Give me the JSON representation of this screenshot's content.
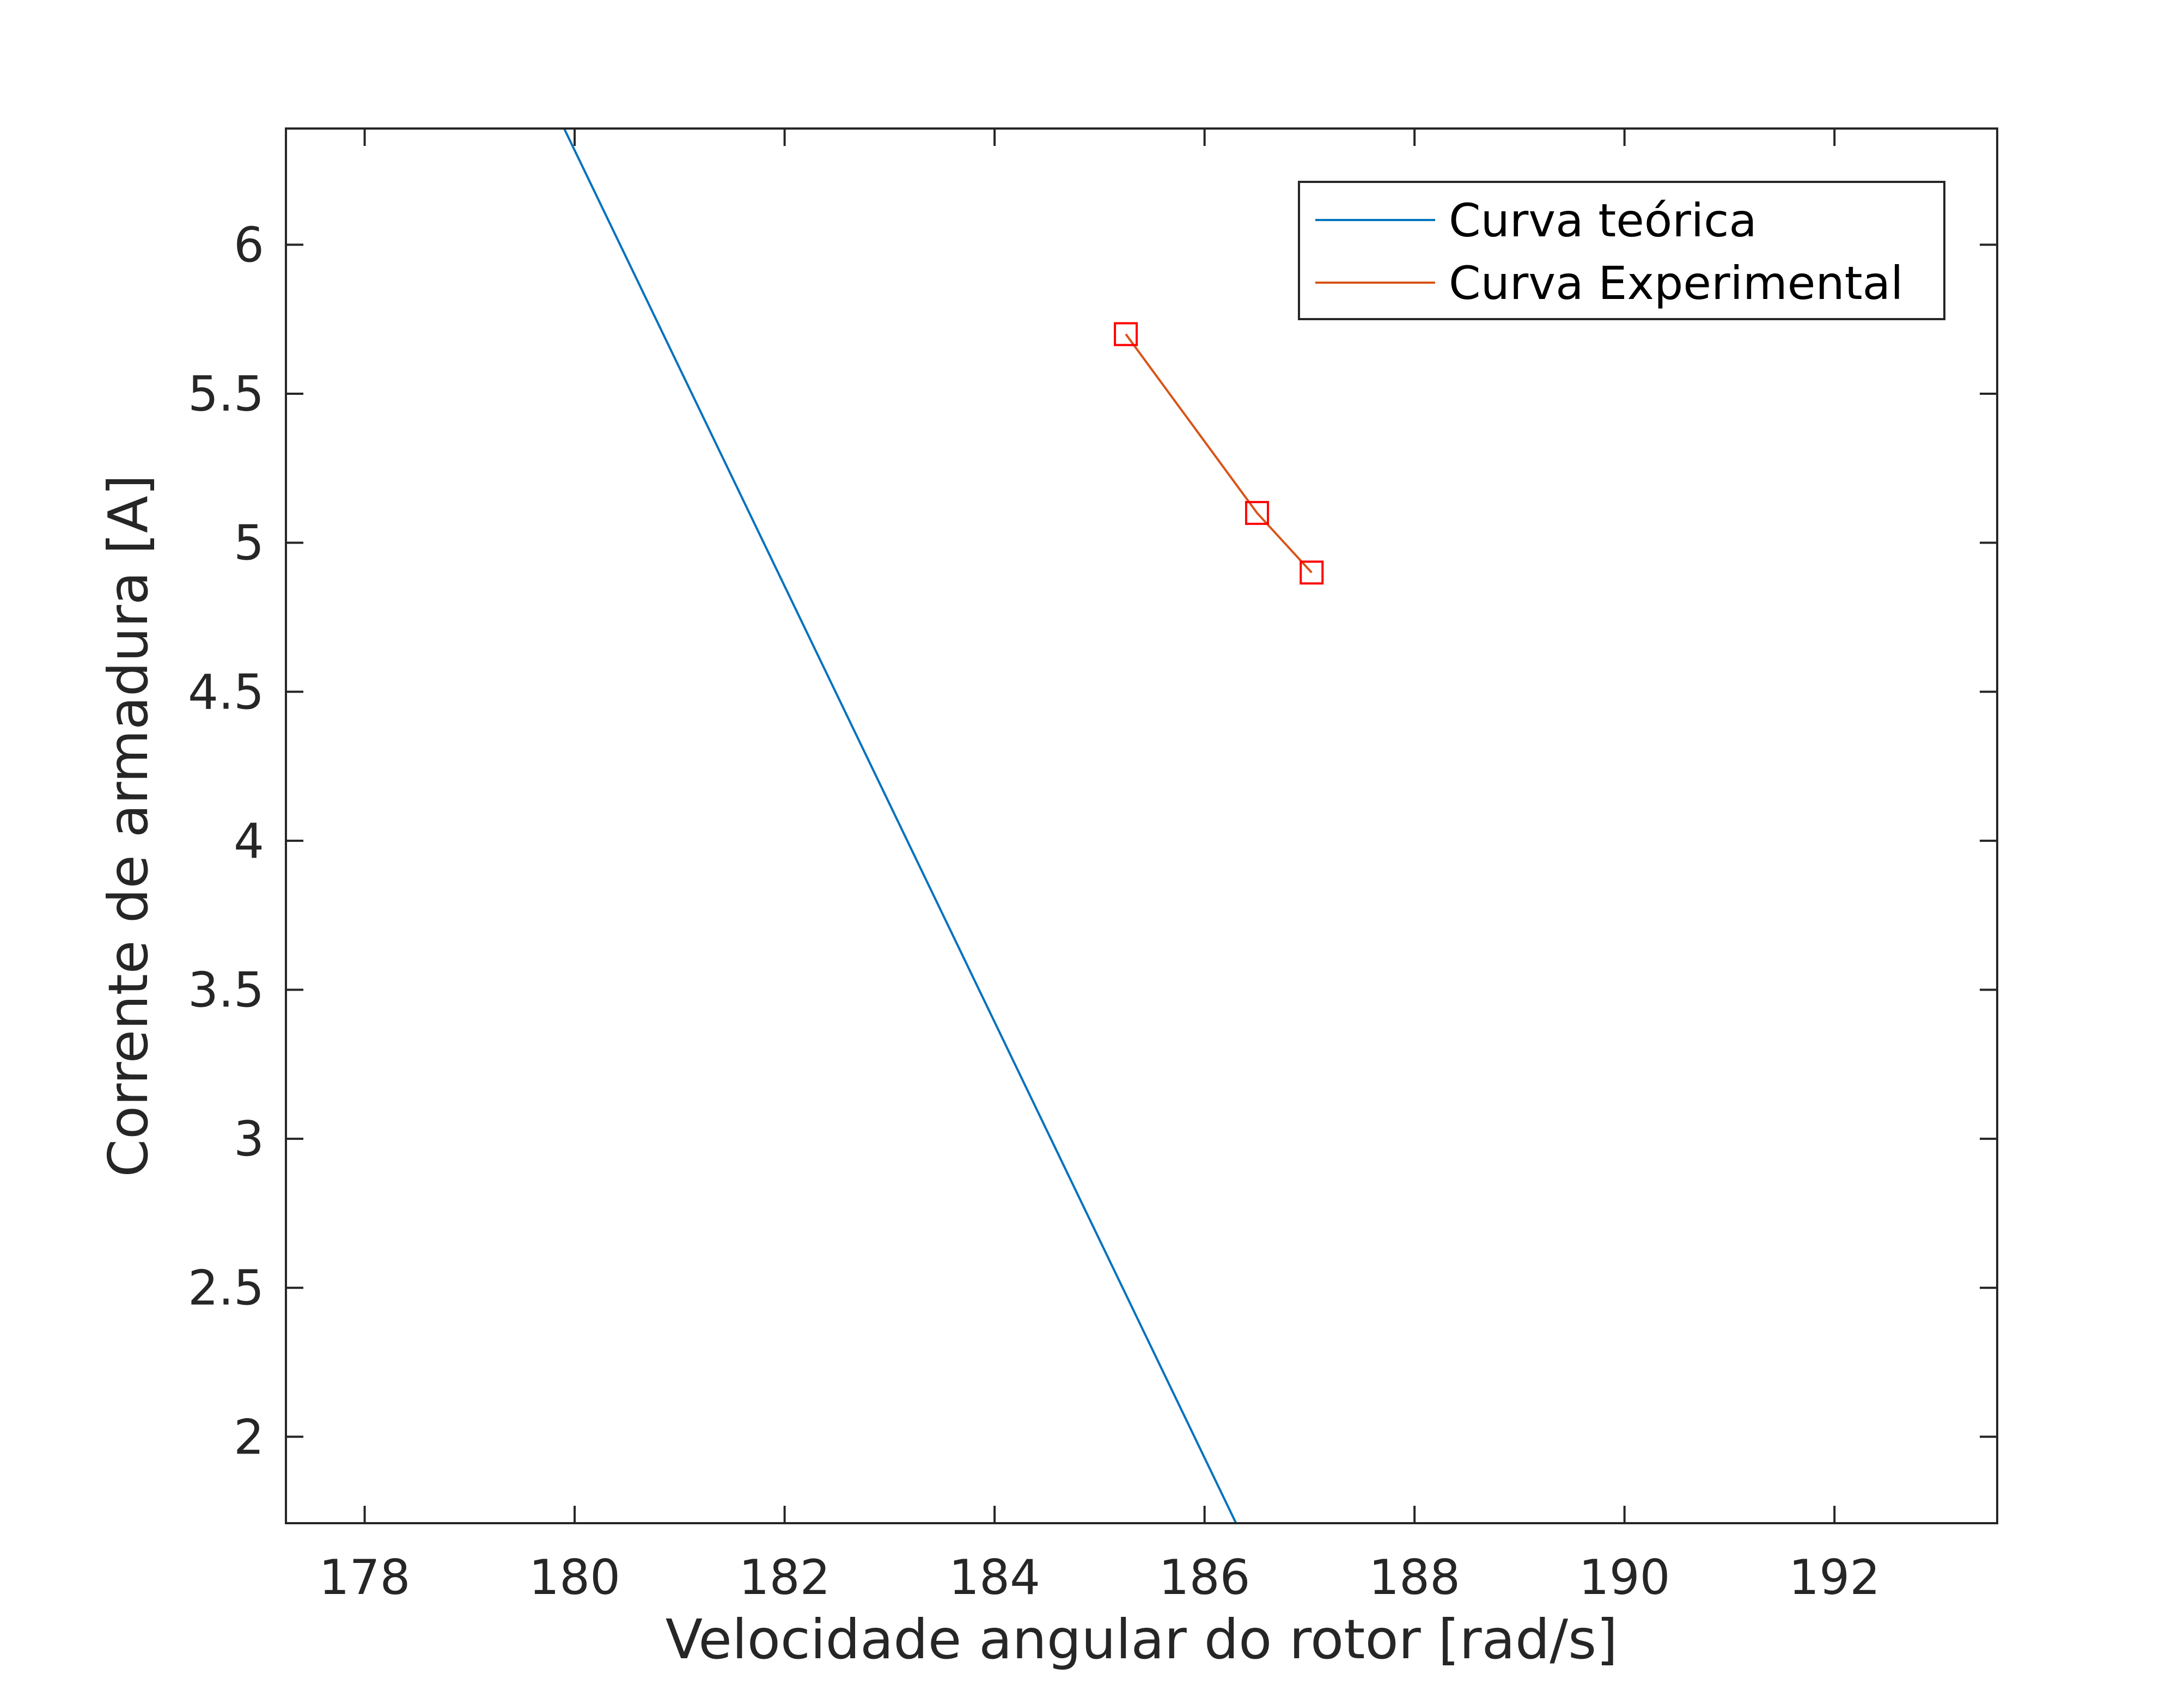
{
  "chart_data": {
    "type": "line",
    "title": "",
    "xlabel": "Velocidade angular do rotor [rad/s]",
    "ylabel": "Corrente de armadura [A]",
    "xlim": [
      177.25,
      193.55
    ],
    "ylim": [
      1.71,
      6.39
    ],
    "xticks": [
      178,
      180,
      182,
      184,
      186,
      188,
      190,
      192
    ],
    "yticks": [
      2,
      2.5,
      3,
      3.5,
      4,
      4.5,
      5,
      5.5,
      6
    ],
    "xtick_labels": [
      "178",
      "180",
      "182",
      "184",
      "186",
      "188",
      "190",
      "192"
    ],
    "ytick_labels": [
      "2",
      "2.5",
      "3",
      "3.5",
      "4",
      "4.5",
      "5",
      "5.5",
      "6"
    ],
    "grid": false,
    "legend_position": "top-right",
    "series": [
      {
        "name": "Curva teórica",
        "color": "#0072BD",
        "marker": "none",
        "x": [
          179.9,
          186.3
        ],
        "y": [
          6.39,
          1.71
        ]
      },
      {
        "name": "Curva Experimental",
        "color": "#D95319",
        "marker": "square",
        "marker_color": "#FF0000",
        "x": [
          185.25,
          186.5,
          187.02
        ],
        "y": [
          5.7,
          5.1,
          4.9
        ]
      }
    ]
  }
}
